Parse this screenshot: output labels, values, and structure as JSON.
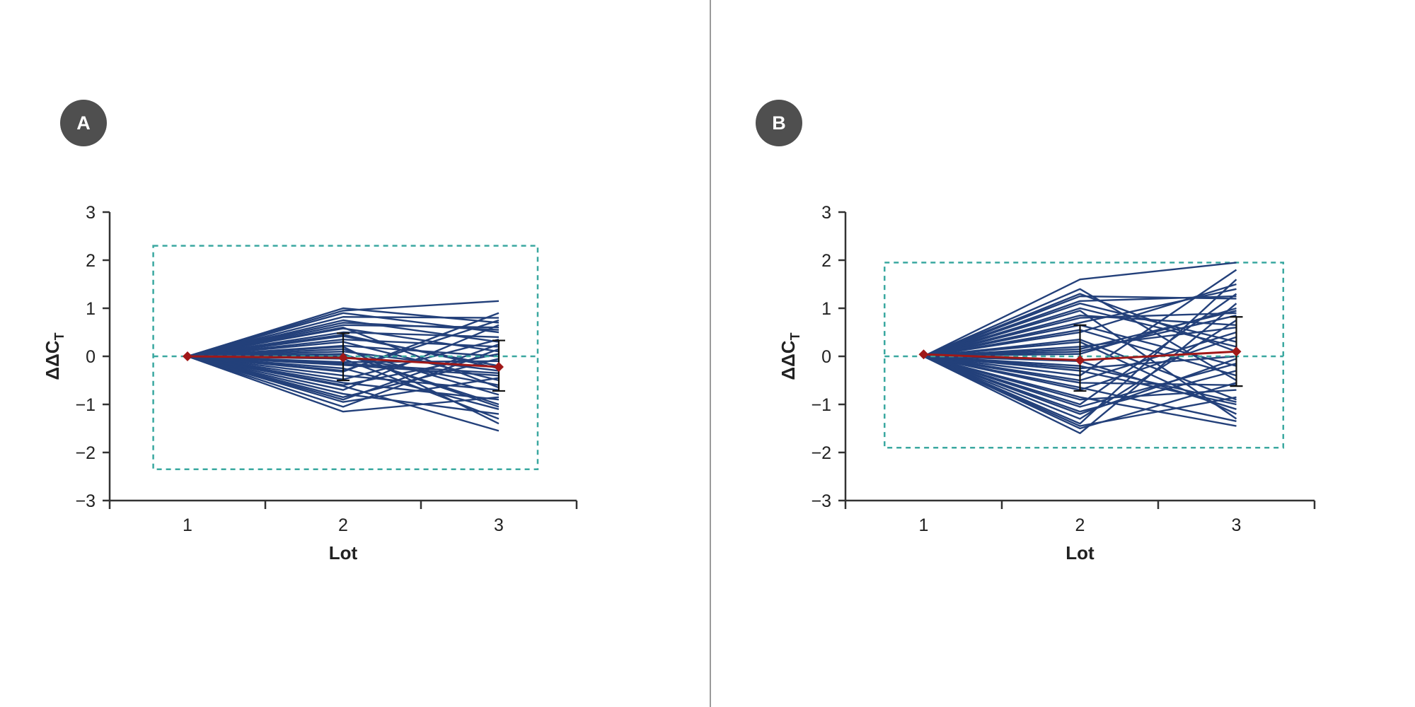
{
  "panels": [
    {
      "label": "A"
    },
    {
      "label": "B"
    }
  ],
  "colors": {
    "lines": "#23407a",
    "mean": "#a01818",
    "error_bar": "#111111",
    "limit_box": "#3aa8a0",
    "axis": "#333333",
    "badge": "#4f4f4f"
  },
  "chart_data": [
    {
      "panel": "A",
      "type": "line",
      "xlabel": "Lot",
      "ylabel": "ΔΔC",
      "ylabel_subscript": "T",
      "x": [
        1,
        2,
        3
      ],
      "xlim": [
        0.5,
        3.5
      ],
      "ylim": [
        -3,
        3
      ],
      "yticks": [
        -3,
        -2,
        -1,
        0,
        1,
        2,
        3
      ],
      "ytick_labels": [
        "−3",
        "−2",
        "−1",
        "0",
        "1",
        "2",
        "3"
      ],
      "xticks": [
        1,
        2,
        3
      ],
      "xtick_labels": [
        "1",
        "2",
        "3"
      ],
      "limit_box": {
        "x": [
          0.78,
          3.25
        ],
        "y": [
          -2.35,
          2.3
        ]
      },
      "zero_line": 0,
      "mean": {
        "x": [
          1,
          2,
          3
        ],
        "y": [
          0,
          -0.03,
          -0.22
        ]
      },
      "error_bars": [
        {
          "x": 2,
          "low": -0.5,
          "high": 0.48
        },
        {
          "x": 3,
          "low": -0.72,
          "high": 0.33
        }
      ],
      "lot2_values": [
        0.95,
        1.0,
        0.9,
        0.82,
        0.75,
        0.65,
        0.58,
        0.5,
        0.42,
        0.35,
        0.3,
        0.22,
        0.15,
        0.1,
        0.04,
        0.0,
        -0.05,
        -0.12,
        -0.18,
        -0.25,
        -0.32,
        -0.4,
        -0.48,
        -0.55,
        -0.62,
        -0.7,
        -0.78,
        -0.85,
        -0.95,
        -1.05,
        -1.15,
        0.7,
        0.45,
        0.2,
        -0.3,
        -0.6,
        0.6,
        -0.9,
        0.05,
        -0.15
      ],
      "lot3_values": [
        1.15,
        0.7,
        0.5,
        0.8,
        0.3,
        0.6,
        0.1,
        0.4,
        -0.2,
        0.2,
        -0.5,
        0.0,
        -0.8,
        -0.3,
        -1.0,
        -0.6,
        -1.3,
        -0.1,
        -0.4,
        -1.1,
        0.9,
        -0.7,
        0.35,
        -0.9,
        -1.55,
        0.65,
        -1.2,
        -0.05,
        -0.45,
        0.15,
        -0.85,
        0.55,
        -0.25,
        -1.4,
        0.75,
        0.05,
        -0.65,
        0.25,
        -1.05,
        -0.35
      ]
    },
    {
      "panel": "B",
      "type": "line",
      "xlabel": "Lot",
      "ylabel": "ΔΔC",
      "ylabel_subscript": "T",
      "x": [
        1,
        2,
        3
      ],
      "xlim": [
        0.5,
        3.5
      ],
      "ylim": [
        -3,
        3
      ],
      "yticks": [
        -3,
        -2,
        -1,
        0,
        1,
        2,
        3
      ],
      "ytick_labels": [
        "−3",
        "−2",
        "−1",
        "0",
        "1",
        "2",
        "3"
      ],
      "xticks": [
        1,
        2,
        3
      ],
      "xtick_labels": [
        "1",
        "2",
        "3"
      ],
      "limit_box": {
        "x": [
          0.75,
          3.3
        ],
        "y": [
          -1.9,
          1.95
        ]
      },
      "zero_line": 0,
      "mean": {
        "x": [
          1,
          2,
          3
        ],
        "y": [
          0.04,
          -0.08,
          0.1
        ]
      },
      "error_bars": [
        {
          "x": 2,
          "low": -0.72,
          "high": 0.65
        },
        {
          "x": 3,
          "low": -0.62,
          "high": 0.82
        }
      ],
      "lot2_values": [
        1.6,
        1.4,
        1.25,
        1.1,
        0.95,
        0.8,
        0.65,
        0.5,
        0.35,
        0.2,
        0.05,
        -0.1,
        -0.25,
        -0.4,
        -0.55,
        -0.7,
        -0.85,
        -1.0,
        -1.15,
        -1.3,
        -1.45,
        -1.6,
        1.0,
        0.3,
        -0.5,
        -1.2,
        0.7,
        -0.9,
        0.1,
        -0.3,
        1.3,
        -1.4,
        0.55,
        -0.65,
        0.85,
        -1.05,
        0.15,
        -0.2,
        1.15,
        -1.5
      ],
      "lot3_values": [
        1.95,
        -0.5,
        1.2,
        0.3,
        -1.3,
        0.9,
        -0.2,
        1.5,
        -0.9,
        0.6,
        1.0,
        -1.1,
        0.0,
        1.8,
        -0.6,
        0.4,
        -1.45,
        1.3,
        -0.3,
        0.75,
        -0.85,
        1.1,
        0.2,
        -1.2,
        0.5,
        -0.05,
        1.4,
        -0.7,
        0.85,
        -1.0,
        0.1,
        1.6,
        -0.4,
        -1.35,
        0.65,
        -0.15,
        0.95,
        -0.95,
        1.25,
        -0.55
      ]
    }
  ]
}
